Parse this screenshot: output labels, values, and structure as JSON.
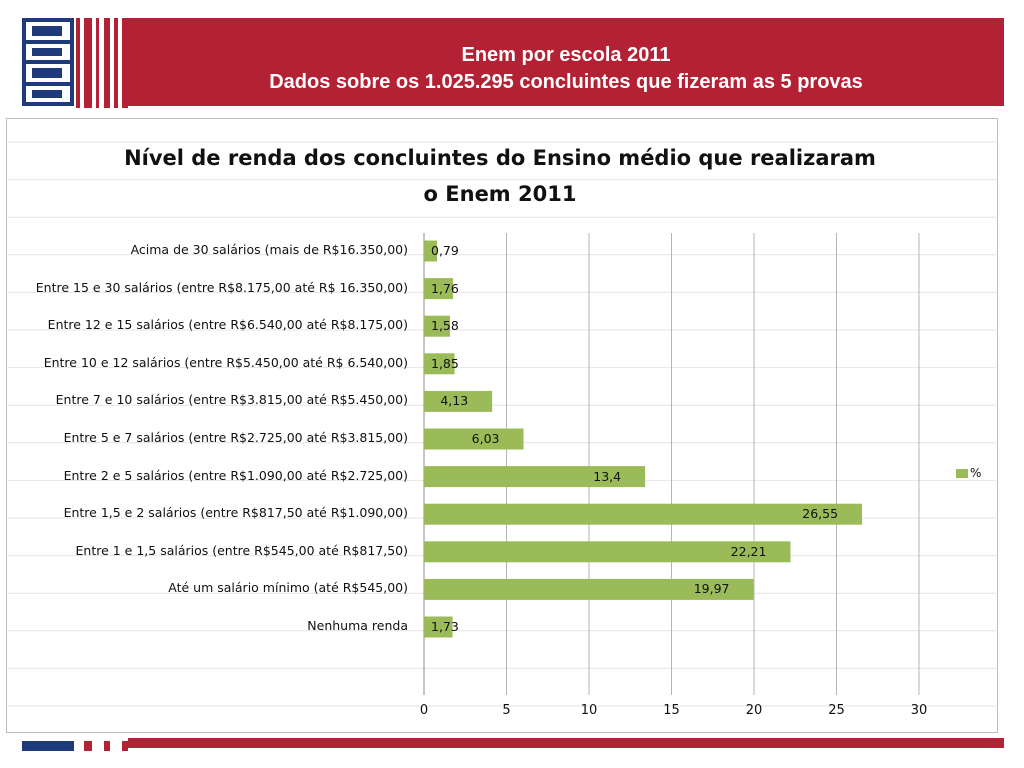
{
  "header": {
    "title_line1": "Enem por escola 2011",
    "title_line2": "Dados sobre os 1.025.295 concluintes que fizeram as 5 provas"
  },
  "colors": {
    "brand_red": "#b22234",
    "bar_green": "#9bbb59"
  },
  "chart_data": {
    "type": "bar",
    "orientation": "horizontal",
    "title_line1": "Nível de renda dos concluintes do Ensino médio que realizaram",
    "title_line2": "o Enem 2011",
    "categories": [
      "Acima de 30 salários (mais de R$16.350,00)",
      "Entre 15 e 30 salários (entre R$8.175,00 até R$ 16.350,00)",
      "Entre 12 e 15 salários (entre R$6.540,00 até R$8.175,00)",
      "Entre 10 e 12 salários (entre R$5.450,00 até R$ 6.540,00)",
      "Entre 7 e 10 salários (entre R$3.815,00 até R$5.450,00)",
      "Entre 5 e 7 salários (entre R$2.725,00 até R$3.815,00)",
      "Entre 2 e 5 salários (entre R$1.090,00 até R$2.725,00)",
      "Entre 1,5 e 2 salários (entre R$817,50 até R$1.090,00)",
      "Entre 1 e 1,5 salários (entre R$545,00 até R$817,50)",
      "Até um salário mínimo (até R$545,00)",
      "Nenhuma renda"
    ],
    "values": [
      0.79,
      1.76,
      1.58,
      1.85,
      4.13,
      6.03,
      13.4,
      26.55,
      22.21,
      19.97,
      1.73
    ],
    "value_labels": [
      "0,79",
      "1,76",
      "1,58",
      "1,85",
      "4,13",
      "6,03",
      "13,4",
      "26,55",
      "22,21",
      "19,97",
      "1,73"
    ],
    "series_name": "%",
    "xlim": [
      0,
      30
    ],
    "x_ticks": [
      "0",
      "5",
      "10",
      "15",
      "20",
      "25",
      "30"
    ],
    "legend_position": "right",
    "grid": true
  }
}
